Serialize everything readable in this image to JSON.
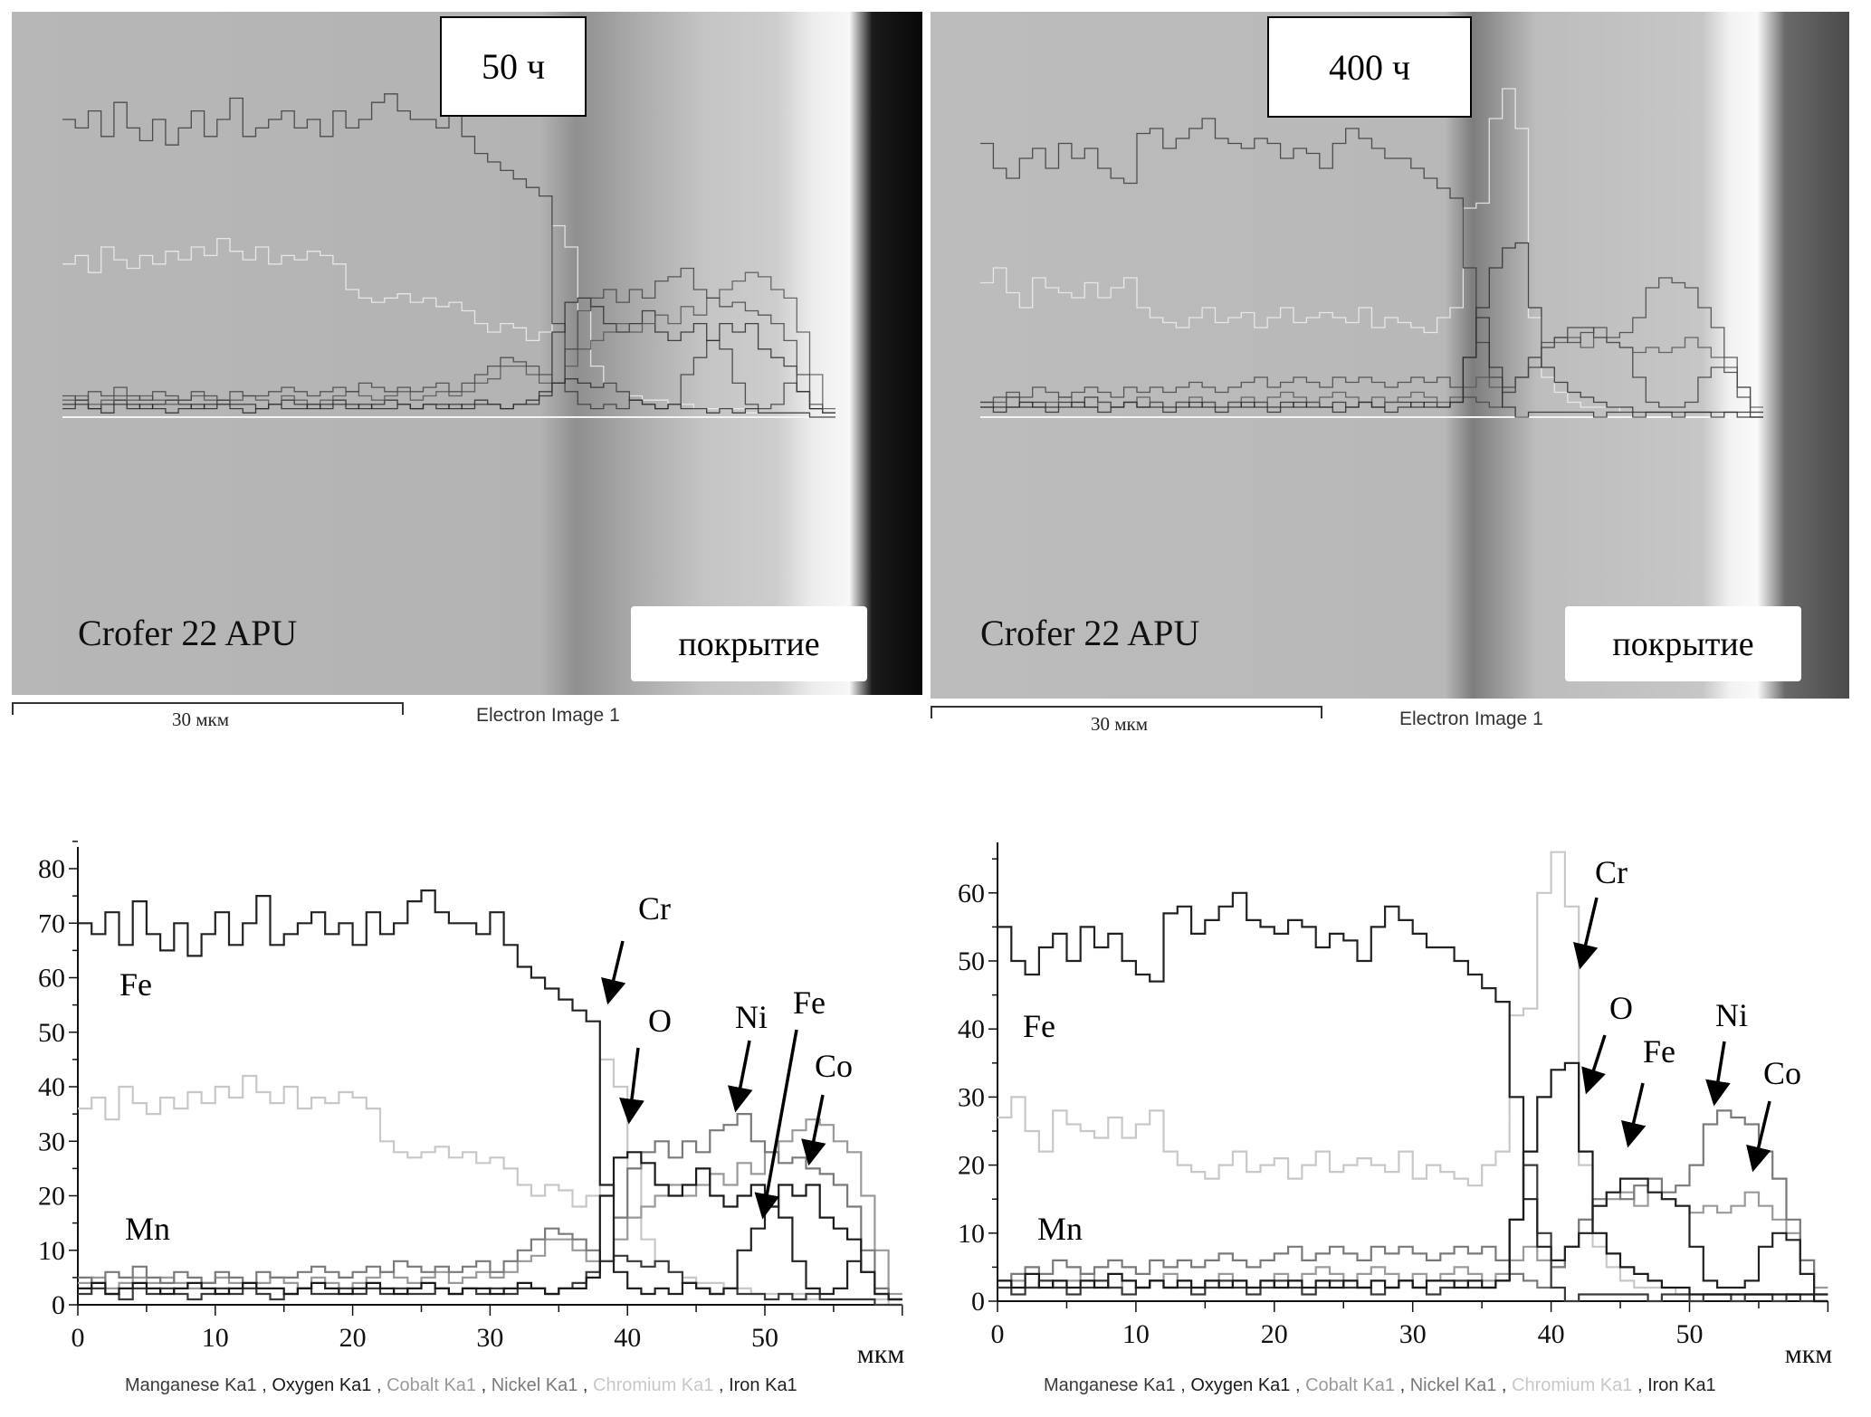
{
  "panels": [
    {
      "time_label": "50 ч",
      "material_label": "Crofer 22 APU",
      "coating_label": "покрытие",
      "scale_label": "30 мкм",
      "image_label": "Electron Image 1"
    },
    {
      "time_label": "400 ч",
      "material_label": "Crofer 22 APU",
      "coating_label": "покрытие",
      "scale_label": "30 мкм",
      "image_label": "Electron Image 1"
    }
  ],
  "chart_data": [
    {
      "type": "line",
      "xlabel": "мкм",
      "xlim": [
        0,
        60
      ],
      "ylim": [
        0,
        85
      ],
      "x_ticks": [
        "0",
        "10",
        "20",
        "30",
        "40",
        "50"
      ],
      "y_ticks": [
        "0",
        "10",
        "20",
        "30",
        "40",
        "50",
        "60",
        "70",
        "80"
      ],
      "x_step": 1,
      "legend": [
        {
          "text": "Manganese Ka1",
          "color": "#3a3a3a"
        },
        {
          "text": "Oxygen Ka1",
          "color": "#1a1a1a"
        },
        {
          "text": "Cobalt Ka1",
          "color": "#9a9a9a"
        },
        {
          "text": "Nickel Ka1",
          "color": "#7a7a7a"
        },
        {
          "text": "Chromium Ka1",
          "color": "#c8c8c8"
        },
        {
          "text": "Iron Ka1",
          "color": "#222222"
        }
      ],
      "legend_position": "bottom",
      "annotations": [
        "Fe",
        "Mn",
        "Cr",
        "O",
        "Ni",
        "Fe",
        "Co"
      ],
      "series": [
        {
          "name": "Iron Ka1",
          "color": "#222222",
          "values": [
            70,
            68,
            72,
            66,
            74,
            68,
            65,
            70,
            64,
            68,
            72,
            66,
            70,
            75,
            66,
            68,
            70,
            72,
            68,
            70,
            66,
            72,
            68,
            70,
            74,
            76,
            72,
            70,
            70,
            68,
            72,
            66,
            62,
            60,
            58,
            56,
            54,
            52,
            22,
            6,
            3,
            2,
            3,
            2,
            4,
            3,
            2,
            3,
            10,
            14,
            18,
            16,
            8,
            3,
            2,
            3,
            8,
            6,
            2,
            1
          ]
        },
        {
          "name": "Oxygen Ka1",
          "color": "#1a1a1a",
          "values": [
            3,
            4,
            2,
            3,
            4,
            3,
            2,
            3,
            4,
            3,
            2,
            3,
            4,
            3,
            3,
            2,
            3,
            4,
            3,
            2,
            3,
            4,
            3,
            2,
            3,
            4,
            3,
            2,
            3,
            3,
            2,
            3,
            4,
            3,
            2,
            3,
            3,
            5,
            20,
            27,
            28,
            26,
            22,
            20,
            22,
            25,
            20,
            18,
            20,
            22,
            18,
            22,
            20,
            22,
            16,
            14,
            12,
            6,
            2,
            1
          ]
        },
        {
          "name": "Cobalt Ka1",
          "color": "#9a9a9a",
          "values": [
            4,
            5,
            3,
            4,
            5,
            4,
            5,
            4,
            3,
            4,
            5,
            4,
            3,
            4,
            5,
            4,
            3,
            5,
            4,
            3,
            4,
            5,
            6,
            5,
            4,
            5,
            6,
            4,
            5,
            6,
            5,
            6,
            8,
            9,
            12,
            12,
            10,
            8,
            8,
            12,
            16,
            18,
            20,
            22,
            20,
            22,
            24,
            22,
            26,
            24,
            28,
            30,
            32,
            34,
            33,
            30,
            28,
            20,
            10,
            2
          ]
        },
        {
          "name": "Nickel Ka1",
          "color": "#7a7a7a",
          "values": [
            5,
            4,
            6,
            5,
            7,
            5,
            4,
            6,
            5,
            4,
            6,
            5,
            4,
            6,
            5,
            5,
            6,
            7,
            6,
            5,
            6,
            7,
            6,
            8,
            7,
            6,
            7,
            6,
            7,
            8,
            6,
            8,
            10,
            12,
            14,
            13,
            12,
            10,
            8,
            16,
            25,
            28,
            30,
            27,
            30,
            28,
            32,
            33,
            35,
            30,
            28,
            26,
            27,
            25,
            24,
            22,
            18,
            10,
            3,
            1
          ]
        },
        {
          "name": "Chromium Ka1",
          "color": "#c8c8c8",
          "values": [
            36,
            38,
            34,
            40,
            37,
            35,
            38,
            36,
            39,
            37,
            40,
            38,
            42,
            39,
            37,
            40,
            36,
            38,
            37,
            39,
            38,
            36,
            30,
            28,
            27,
            28,
            29,
            27,
            28,
            26,
            27,
            25,
            22,
            20,
            22,
            21,
            18,
            20,
            45,
            40,
            25,
            12,
            8,
            6,
            5,
            4,
            4,
            3,
            3,
            2,
            2,
            2,
            2,
            1,
            1,
            1,
            1,
            1,
            1,
            0
          ]
        },
        {
          "name": "Manganese Ka1",
          "color": "#3a3a3a",
          "values": [
            2,
            3,
            2,
            1,
            3,
            2,
            3,
            2,
            1,
            2,
            3,
            2,
            3,
            2,
            1,
            2,
            3,
            2,
            2,
            3,
            2,
            3,
            2,
            3,
            2,
            2,
            3,
            2,
            3,
            2,
            3,
            2,
            3,
            3,
            2,
            3,
            4,
            6,
            8,
            9,
            8,
            7,
            8,
            6,
            4,
            3,
            2,
            3,
            2,
            2,
            1,
            2,
            1,
            2,
            1,
            1,
            1,
            1,
            0,
            0
          ]
        }
      ]
    },
    {
      "type": "line",
      "xlabel": "мкм",
      "xlim": [
        0,
        60
      ],
      "ylim": [
        0,
        68
      ],
      "x_ticks": [
        "0",
        "10",
        "20",
        "30",
        "40",
        "50"
      ],
      "y_ticks": [
        "0",
        "10",
        "20",
        "30",
        "40",
        "50",
        "60"
      ],
      "x_step": 1,
      "legend": [
        {
          "text": "Manganese Ka1",
          "color": "#3a3a3a"
        },
        {
          "text": "Oxygen Ka1",
          "color": "#1a1a1a"
        },
        {
          "text": "Cobalt Ka1",
          "color": "#9a9a9a"
        },
        {
          "text": "Nickel Ka1",
          "color": "#7a7a7a"
        },
        {
          "text": "Chromium Ka1",
          "color": "#c8c8c8"
        },
        {
          "text": "Iron Ka1",
          "color": "#222222"
        }
      ],
      "legend_position": "bottom",
      "annotations": [
        "Fe",
        "Mn",
        "Cr",
        "O",
        "Fe",
        "Ni",
        "Co"
      ],
      "series": [
        {
          "name": "Iron Ka1",
          "color": "#222222",
          "values": [
            55,
            50,
            48,
            52,
            54,
            50,
            55,
            52,
            54,
            50,
            48,
            47,
            57,
            58,
            54,
            56,
            58,
            60,
            56,
            55,
            54,
            56,
            55,
            52,
            54,
            53,
            50,
            55,
            58,
            56,
            54,
            52,
            52,
            50,
            48,
            46,
            44,
            30,
            15,
            8,
            6,
            8,
            10,
            14,
            16,
            18,
            18,
            16,
            15,
            14,
            8,
            3,
            2,
            2,
            3,
            8,
            10,
            9,
            4,
            1
          ]
        },
        {
          "name": "Oxygen Ka1",
          "color": "#1a1a1a",
          "values": [
            3,
            2,
            4,
            2,
            3,
            2,
            3,
            2,
            4,
            3,
            2,
            3,
            2,
            3,
            2,
            3,
            2,
            3,
            2,
            3,
            2,
            3,
            2,
            3,
            2,
            3,
            2,
            3,
            2,
            3,
            2,
            3,
            3,
            2,
            3,
            2,
            3,
            12,
            22,
            30,
            34,
            35,
            22,
            10,
            7,
            5,
            4,
            3,
            2,
            2,
            1,
            1,
            1,
            1,
            1,
            1,
            1,
            1,
            1,
            0
          ]
        },
        {
          "name": "Cobalt Ka1",
          "color": "#9a9a9a",
          "values": [
            2,
            3,
            2,
            3,
            2,
            3,
            4,
            3,
            2,
            3,
            2,
            3,
            4,
            3,
            2,
            3,
            4,
            3,
            2,
            3,
            4,
            3,
            4,
            5,
            4,
            3,
            4,
            5,
            4,
            3,
            4,
            3,
            4,
            5,
            4,
            3,
            4,
            6,
            8,
            6,
            5,
            8,
            12,
            14,
            15,
            16,
            14,
            16,
            15,
            14,
            13,
            14,
            13,
            14,
            16,
            14,
            12,
            10,
            6,
            2
          ]
        },
        {
          "name": "Nickel Ka1",
          "color": "#7a7a7a",
          "values": [
            3,
            4,
            5,
            4,
            6,
            5,
            4,
            5,
            6,
            5,
            4,
            6,
            5,
            6,
            5,
            6,
            7,
            6,
            5,
            6,
            7,
            8,
            6,
            7,
            8,
            7,
            6,
            8,
            7,
            8,
            7,
            6,
            7,
            8,
            7,
            8,
            6,
            4,
            3,
            2,
            5,
            8,
            12,
            15,
            16,
            15,
            17,
            18,
            16,
            17,
            20,
            26,
            28,
            27,
            26,
            22,
            18,
            12,
            6,
            1
          ]
        },
        {
          "name": "Chromium Ka1",
          "color": "#c8c8c8",
          "values": [
            27,
            30,
            25,
            22,
            28,
            26,
            25,
            24,
            27,
            24,
            26,
            28,
            22,
            20,
            19,
            18,
            20,
            22,
            19,
            20,
            21,
            18,
            20,
            22,
            19,
            20,
            21,
            20,
            19,
            22,
            18,
            20,
            19,
            18,
            17,
            20,
            22,
            42,
            43,
            60,
            66,
            58,
            20,
            8,
            5,
            3,
            2,
            2,
            2,
            1,
            1,
            1,
            1,
            1,
            1,
            1,
            1,
            1,
            1,
            0
          ]
        },
        {
          "name": "Manganese Ka1",
          "color": "#3a3a3a",
          "values": [
            2,
            1,
            2,
            3,
            2,
            1,
            2,
            3,
            2,
            1,
            2,
            3,
            2,
            2,
            1,
            2,
            3,
            2,
            1,
            2,
            3,
            2,
            1,
            2,
            3,
            2,
            2,
            1,
            2,
            3,
            2,
            1,
            2,
            3,
            2,
            2,
            3,
            12,
            20,
            10,
            2,
            0,
            1,
            1,
            1,
            1,
            1,
            0,
            1,
            1,
            0,
            1,
            1,
            0,
            1,
            1,
            0,
            1,
            0,
            0
          ]
        }
      ]
    }
  ]
}
